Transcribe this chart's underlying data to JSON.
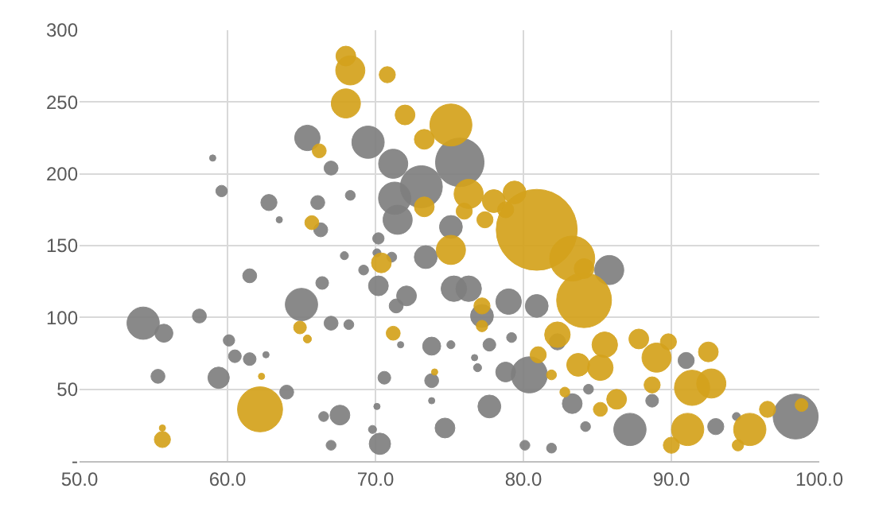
{
  "chart_data": {
    "type": "bubble",
    "grid": true,
    "xlim": [
      50,
      100
    ],
    "xticks": [
      {
        "value": 50,
        "label": "50.0"
      },
      {
        "value": 60,
        "label": "60.0"
      },
      {
        "value": 70,
        "label": "70.0"
      },
      {
        "value": 80,
        "label": "80.0"
      },
      {
        "value": 90,
        "label": "90.0"
      },
      {
        "value": 100,
        "label": "100.0"
      }
    ],
    "ylim": [
      0,
      300
    ],
    "yticks": [
      {
        "value": 0,
        "label": "-"
      },
      50,
      100,
      150,
      200,
      250,
      300
    ],
    "series": [
      {
        "color": "#7f7f7f",
        "x": [
          54.3,
          55.7,
          55.3,
          58.1,
          59.4,
          60.1,
          60.5,
          61.5,
          62.6,
          64.0,
          65.0,
          61.5,
          66.4,
          67.0,
          68.2,
          67.6,
          66.5,
          67.0,
          70.3,
          69.8,
          70.1,
          70.6,
          67.9,
          69.2,
          70.2,
          71.4,
          72.1,
          73.8,
          73.8,
          73.8,
          71.7,
          74.7,
          65.4,
          59.0,
          59.6,
          62.8,
          63.5,
          66.1,
          66.3,
          67.0,
          68.3,
          69.5,
          71.2,
          73.1,
          71.3,
          71.5,
          70.2,
          71.1,
          70.1,
          75.7,
          80.4,
          85.8,
          87.2,
          98.4,
          91.0,
          93.0,
          83.3,
          77.7,
          80.1,
          81.9,
          84.2,
          78.8,
          76.9,
          84.4,
          88.7,
          94.4,
          79.2,
          77.7,
          75.1,
          76.7,
          76.3,
          79.0,
          77.2,
          80.9,
          82.3,
          75.1,
          73.4,
          75.3
        ],
        "values": [
          96,
          89,
          59,
          101,
          58,
          84,
          73,
          71,
          74,
          48,
          109,
          129,
          124,
          96,
          95,
          32,
          31,
          11,
          12,
          22,
          38,
          58,
          143,
          133,
          122,
          108,
          115,
          80,
          56,
          42,
          81,
          23,
          225,
          211,
          188,
          180,
          168,
          180,
          161,
          204,
          185,
          222,
          207,
          191,
          183,
          168,
          155,
          142,
          145,
          208,
          60,
          133,
          22,
          31,
          70,
          24,
          40,
          38,
          11,
          9,
          24,
          62,
          65,
          50,
          42,
          31,
          86,
          81,
          81,
          72,
          120,
          111,
          101,
          108,
          83,
          163,
          142,
          120
        ],
        "sizes": [
          0.16,
          0.05,
          0.03,
          0.03,
          0.07,
          0.02,
          0.025,
          0.025,
          0.006,
          0.03,
          0.16,
          0.03,
          0.025,
          0.03,
          0.015,
          0.06,
          0.015,
          0.015,
          0.07,
          0.01,
          0.006,
          0.025,
          0.01,
          0.015,
          0.06,
          0.03,
          0.06,
          0.05,
          0.03,
          0.006,
          0.006,
          0.06,
          0.1,
          0.006,
          0.02,
          0.04,
          0.006,
          0.03,
          0.03,
          0.03,
          0.015,
          0.16,
          0.13,
          0.27,
          0.16,
          0.13,
          0.02,
          0.015,
          0.01,
          0.36,
          0.2,
          0.13,
          0.16,
          0.31,
          0.04,
          0.04,
          0.06,
          0.08,
          0.015,
          0.015,
          0.015,
          0.06,
          0.01,
          0.015,
          0.025,
          0.01,
          0.015,
          0.025,
          0.01,
          0.006,
          0.1,
          0.1,
          0.08,
          0.08,
          0.04,
          0.08,
          0.08,
          0.1
        ]
      },
      {
        "color": "#d4a21c",
        "x": [
          68.0,
          68.3,
          68.0,
          70.8,
          72.0,
          73.3,
          66.2,
          73.3,
          65.7,
          70.4,
          75.1,
          76.3,
          79.4,
          78.0,
          76.0,
          78.8,
          77.4,
          80.9,
          83.3,
          75.1,
          84.1,
          84.1,
          82.3,
          81.0,
          85.5,
          83.7,
          85.2,
          87.8,
          89.0,
          89.8,
          92.5,
          91.4,
          92.7,
          91.1,
          95.3,
          96.5,
          98.8,
          86.3,
          85.2,
          90.0,
          94.5,
          88.7,
          77.2,
          77.2,
          82.8,
          81.9,
          62.2,
          55.6,
          55.6,
          64.9,
          65.4,
          71.2,
          62.3,
          74.0
        ],
        "values": [
          282,
          272,
          249,
          269,
          241,
          224,
          216,
          177,
          166,
          138,
          234,
          186,
          187,
          181,
          174,
          175,
          168,
          161,
          141,
          147,
          112,
          134,
          88,
          74,
          81,
          67,
          65,
          85,
          72,
          83,
          76,
          51,
          54,
          22,
          22,
          36,
          39,
          43,
          36,
          11,
          11,
          53,
          108,
          94,
          48,
          60,
          36,
          15,
          23,
          93,
          85,
          89,
          59,
          62
        ],
        "sizes": [
          0.06,
          0.13,
          0.13,
          0.04,
          0.06,
          0.06,
          0.03,
          0.06,
          0.03,
          0.06,
          0.27,
          0.13,
          0.08,
          0.08,
          0.04,
          0.04,
          0.04,
          1,
          0.31,
          0.13,
          0.46,
          0.06,
          0.1,
          0.04,
          0.1,
          0.08,
          0.1,
          0.06,
          0.13,
          0.04,
          0.06,
          0.19,
          0.13,
          0.16,
          0.16,
          0.04,
          0.025,
          0.06,
          0.03,
          0.04,
          0.02,
          0.04,
          0.04,
          0.02,
          0.015,
          0.015,
          0.31,
          0.04,
          0.006,
          0.025,
          0.01,
          0.03,
          0.006,
          0.006
        ]
      }
    ]
  }
}
